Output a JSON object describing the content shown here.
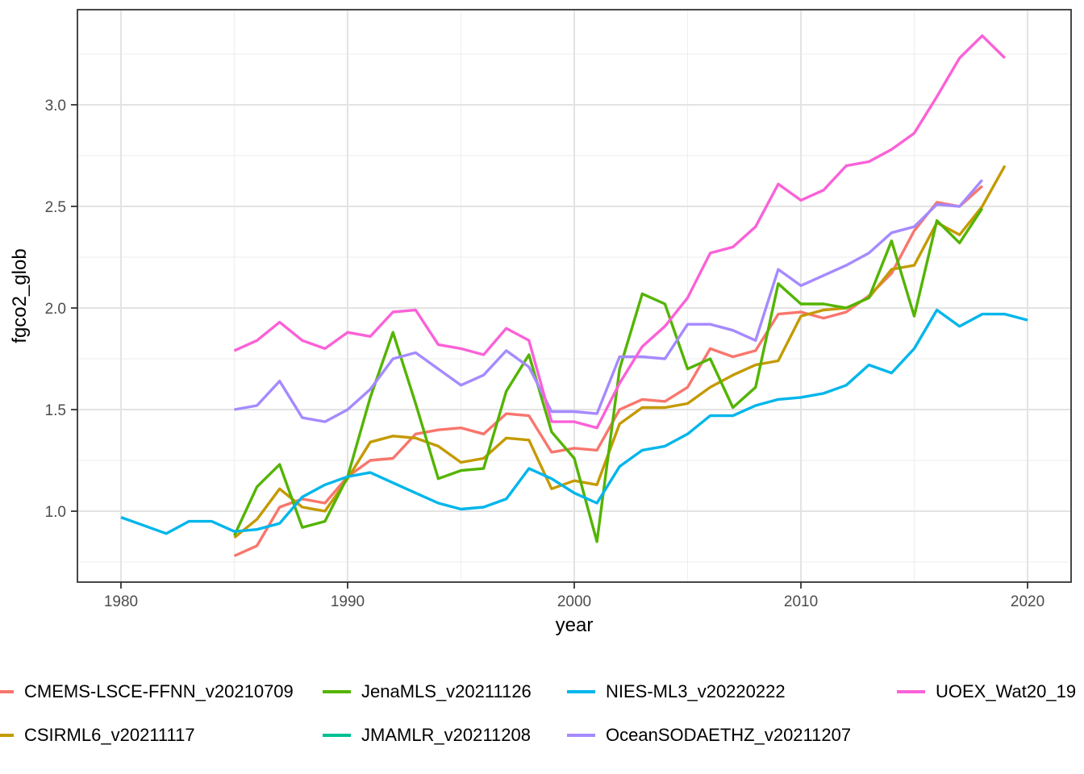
{
  "legend": {
    "items": [
      {
        "label": "CMEMS-LSCE-FFNN_v20210709",
        "color": "#F8766D"
      },
      {
        "label": "CSIRML6_v20211117",
        "color": "#C49A00"
      },
      {
        "label": "JenaMLS_v20211126",
        "color": "#53B400"
      },
      {
        "label": "JMAMLR_v20211208",
        "color": "#00C094"
      },
      {
        "label": "NIES-ML3_v20220222",
        "color": "#00B6EB"
      },
      {
        "label": "OceanSODAETHZ_v20211207",
        "color": "#A58AFF"
      },
      {
        "label": "UOEX_Wat20_19",
        "color": "#FB61D7"
      }
    ]
  },
  "chart_data": {
    "type": "line",
    "title": "",
    "xlabel": "year",
    "ylabel": "fgco2_glob",
    "xlim": [
      1978.08,
      2021.92
    ],
    "ylim": [
      0.651,
      3.468
    ],
    "x_ticks": [
      1980,
      1990,
      2000,
      2010,
      2020
    ],
    "y_ticks": [
      1.0,
      1.5,
      2.0,
      2.5,
      3.0
    ],
    "x_minor_ticks": [
      1985,
      1995,
      2005,
      2015
    ],
    "y_minor_ticks": [
      0.75,
      1.25,
      1.75,
      2.25,
      2.75,
      3.25
    ],
    "grid": true,
    "legend_position": "bottom",
    "panel_border": "#333333",
    "grid_color_major": "#e3e3e3",
    "grid_color_minor": "#efefef",
    "series": [
      {
        "name": "CMEMS-LSCE-FFNN_v20210709",
        "color": "#F8766D",
        "start_year": 1985,
        "values": [
          0.78,
          0.83,
          1.02,
          1.06,
          1.04,
          1.17,
          1.25,
          1.26,
          1.38,
          1.4,
          1.41,
          1.38,
          1.48,
          1.47,
          1.29,
          1.31,
          1.3,
          1.5,
          1.55,
          1.54,
          1.61,
          1.8,
          1.76,
          1.79,
          1.97,
          1.98,
          1.95,
          1.98,
          2.06,
          2.17,
          2.38,
          2.52,
          2.5,
          2.6
        ]
      },
      {
        "name": "CSIRML6_v20211117",
        "color": "#C49A00",
        "start_year": 1985,
        "values": [
          0.87,
          0.96,
          1.11,
          1.02,
          1.0,
          1.16,
          1.34,
          1.37,
          1.36,
          1.32,
          1.24,
          1.26,
          1.36,
          1.35,
          1.11,
          1.15,
          1.13,
          1.43,
          1.51,
          1.51,
          1.53,
          1.61,
          1.67,
          1.72,
          1.74,
          1.96,
          1.99,
          2.0,
          2.05,
          2.19,
          2.21,
          2.42,
          2.36,
          2.5,
          2.7
        ]
      },
      {
        "name": "JenaMLS_v20211126",
        "color": "#53B400",
        "start_year": 1985,
        "values": [
          0.88,
          1.12,
          1.23,
          0.92,
          0.95,
          1.17,
          1.56,
          1.88,
          1.53,
          1.16,
          1.2,
          1.21,
          1.59,
          1.77,
          1.39,
          1.26,
          0.85,
          1.7,
          2.07,
          2.02,
          1.7,
          1.75,
          1.51,
          1.61,
          2.12,
          2.02,
          2.02,
          2.0,
          2.05,
          2.33,
          1.96,
          2.43,
          2.32,
          2.49
        ]
      },
      {
        "name": "JMAMLR_v20211208",
        "color": "#00C094",
        "start_year": null,
        "values": []
      },
      {
        "name": "NIES-ML3_v20220222",
        "color": "#00B6EB",
        "start_year": 1980,
        "values": [
          0.97,
          0.93,
          0.89,
          0.95,
          0.95,
          0.9,
          0.91,
          0.94,
          1.07,
          1.13,
          1.17,
          1.19,
          1.14,
          1.09,
          1.04,
          1.01,
          1.02,
          1.06,
          1.21,
          1.16,
          1.09,
          1.04,
          1.22,
          1.3,
          1.32,
          1.38,
          1.47,
          1.47,
          1.52,
          1.55,
          1.56,
          1.58,
          1.62,
          1.72,
          1.68,
          1.8,
          1.99,
          1.91,
          1.97,
          1.97,
          1.94
        ]
      },
      {
        "name": "OceanSODAETHZ_v20211207",
        "color": "#A58AFF",
        "start_year": 1985,
        "values": [
          1.5,
          1.52,
          1.64,
          1.46,
          1.44,
          1.5,
          1.6,
          1.75,
          1.78,
          1.7,
          1.62,
          1.67,
          1.79,
          1.71,
          1.49,
          1.49,
          1.48,
          1.76,
          1.76,
          1.75,
          1.92,
          1.92,
          1.89,
          1.84,
          2.19,
          2.11,
          2.16,
          2.21,
          2.27,
          2.37,
          2.4,
          2.51,
          2.5,
          2.63
        ]
      },
      {
        "name": "UOEX_Wat20_19",
        "color": "#FB61D7",
        "start_year": 1985,
        "values": [
          1.79,
          1.84,
          1.93,
          1.84,
          1.8,
          1.88,
          1.86,
          1.98,
          1.99,
          1.82,
          1.8,
          1.77,
          1.9,
          1.84,
          1.44,
          1.44,
          1.41,
          1.63,
          1.81,
          1.91,
          2.05,
          2.27,
          2.3,
          2.4,
          2.61,
          2.53,
          2.58,
          2.7,
          2.72,
          2.78,
          2.86,
          3.04,
          3.23,
          3.34,
          3.23
        ]
      }
    ]
  }
}
